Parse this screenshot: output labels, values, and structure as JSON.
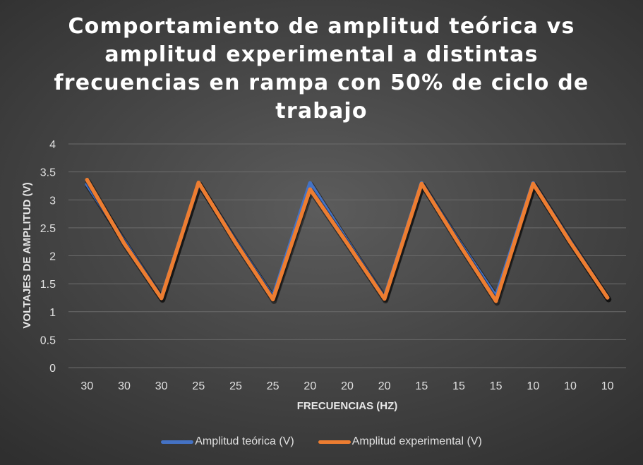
{
  "chart_data": {
    "type": "line",
    "title": "Comportamiento de amplitud teórica vs amplitud experimental a distintas frecuencias en rampa con 50% de ciclo de trabajo",
    "xlabel": "FRECUENCIAS (HZ)",
    "ylabel": "VOLTAJES DE AMPLITUD (V)",
    "ylim": [
      0,
      4
    ],
    "yticks": [
      "0",
      "0.5",
      "1",
      "1.5",
      "2",
      "2.5",
      "3",
      "3.5",
      "4"
    ],
    "categories": [
      "30",
      "30",
      "30",
      "25",
      "25",
      "25",
      "20",
      "20",
      "20",
      "15",
      "15",
      "15",
      "10",
      "10",
      "10"
    ],
    "grid": true,
    "legend_position": "bottom",
    "series": [
      {
        "name": "Amplitud teórica (V)",
        "color": "#4472C4",
        "values": [
          3.28,
          2.26,
          1.25,
          3.3,
          2.26,
          1.26,
          3.3,
          2.26,
          1.25,
          3.3,
          2.26,
          1.27,
          3.3,
          2.26,
          1.25
        ]
      },
      {
        "name": "Amplitud experimental (V)",
        "color": "#ED7D31",
        "values": [
          3.36,
          2.22,
          1.24,
          3.31,
          2.23,
          1.22,
          3.19,
          2.22,
          1.23,
          3.29,
          2.22,
          1.19,
          3.29,
          2.24,
          1.25
        ]
      }
    ]
  }
}
